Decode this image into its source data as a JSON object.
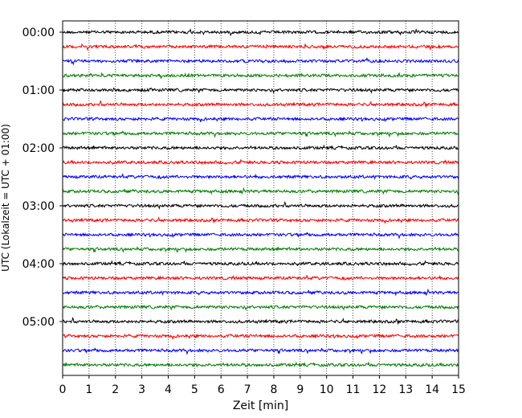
{
  "chart_data": {
    "type": "line",
    "title": "",
    "xlabel": "Zeit  [min]",
    "ylabel": "UTC (Lokalzeit = UTC + 01:00)",
    "xlim": [
      0,
      15
    ],
    "x_ticks": [
      0,
      1,
      2,
      3,
      4,
      5,
      6,
      7,
      8,
      9,
      10,
      11,
      12,
      13,
      14,
      15
    ],
    "y_tick_labels": [
      "00:00",
      "01:00",
      "02:00",
      "03:00",
      "04:00",
      "05:00"
    ],
    "grid": "vertical dotted at each minute",
    "trace_interval_min": 15,
    "trace_count": 24,
    "trace_colors": [
      "#000000",
      "#ff0000",
      "#0000ff",
      "#008000"
    ],
    "series": [
      {
        "start": "00:00"
      },
      {
        "start": "00:15"
      },
      {
        "start": "00:30"
      },
      {
        "start": "00:45"
      },
      {
        "start": "01:00"
      },
      {
        "start": "01:15"
      },
      {
        "start": "01:30"
      },
      {
        "start": "01:45"
      },
      {
        "start": "02:00"
      },
      {
        "start": "02:15"
      },
      {
        "start": "02:30"
      },
      {
        "start": "02:45"
      },
      {
        "start": "03:00"
      },
      {
        "start": "03:15"
      },
      {
        "start": "03:30"
      },
      {
        "start": "03:45"
      },
      {
        "start": "04:00"
      },
      {
        "start": "04:15"
      },
      {
        "start": "04:30"
      },
      {
        "start": "04:45"
      },
      {
        "start": "05:00"
      },
      {
        "start": "05:15"
      },
      {
        "start": "05:30"
      },
      {
        "start": "05:45"
      }
    ]
  }
}
